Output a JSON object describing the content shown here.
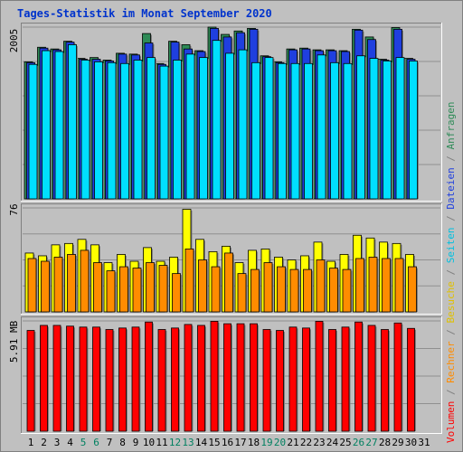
{
  "chart_data": [
    {
      "type": "bar",
      "title": "Tages-Statistik im Monat September 2020",
      "ymax_label": "2005",
      "ylim": [
        0,
        2005
      ],
      "categories": [
        "1",
        "2",
        "3",
        "4",
        "5",
        "6",
        "7",
        "8",
        "9",
        "10",
        "11",
        "12",
        "13",
        "14",
        "15",
        "16",
        "17",
        "18",
        "19",
        "20",
        "21",
        "22",
        "23",
        "24",
        "25",
        "26",
        "27",
        "28",
        "29",
        "30",
        "31"
      ],
      "weekend_categories": [
        "5",
        "6",
        "12",
        "13",
        "19",
        "20",
        "26",
        "27"
      ],
      "series": [
        {
          "name": "Anfragen",
          "color": "#2e8b57",
          "values": [
            1600,
            1770,
            1750,
            1840,
            1640,
            1650,
            1620,
            1700,
            1690,
            1930,
            1580,
            1840,
            1800,
            1730,
            2005,
            1920,
            1960,
            1990,
            1670,
            1600,
            1750,
            1760,
            1740,
            1740,
            1730,
            1980,
            1890,
            1630,
            2000,
            1640,
            null
          ]
        },
        {
          "name": "Dateien",
          "color": "#1f3fdf",
          "values": [
            1590,
            1760,
            1740,
            1830,
            1630,
            1630,
            1610,
            1690,
            1680,
            1820,
            1570,
            1830,
            1750,
            1720,
            1990,
            1890,
            1940,
            1980,
            1660,
            1590,
            1740,
            1750,
            1730,
            1730,
            1720,
            1970,
            1860,
            1620,
            1980,
            1630,
            null
          ]
        },
        {
          "name": "Seiten",
          "color": "#00dfff",
          "values": [
            1570,
            1730,
            1720,
            1800,
            1620,
            1600,
            1590,
            1580,
            1620,
            1650,
            1550,
            1620,
            1690,
            1650,
            1850,
            1700,
            1740,
            1590,
            1650,
            1580,
            1580,
            1580,
            1680,
            1590,
            1580,
            1670,
            1640,
            1610,
            1650,
            1610,
            null
          ]
        }
      ]
    },
    {
      "type": "bar",
      "ymax_label": "76",
      "ylim": [
        0,
        76
      ],
      "series": [
        {
          "name": "Besuche",
          "color": "#ffff00",
          "values": [
            43,
            41,
            49,
            50,
            53,
            49,
            36,
            42,
            37,
            47,
            37,
            40,
            75,
            53,
            44,
            48,
            36,
            45,
            46,
            40,
            38,
            41,
            51,
            37,
            42,
            56,
            54,
            51,
            50,
            42,
            null
          ]
        },
        {
          "name": "Rechner",
          "color": "#ff8c00",
          "values": [
            39,
            37,
            40,
            42,
            45,
            36,
            30,
            33,
            32,
            36,
            34,
            28,
            46,
            38,
            33,
            43,
            28,
            31,
            36,
            33,
            31,
            31,
            38,
            32,
            31,
            39,
            40,
            39,
            39,
            33,
            null
          ]
        }
      ]
    },
    {
      "type": "bar",
      "ymax_label": "5.91 MB",
      "ylim": [
        0,
        5.91
      ],
      "series": [
        {
          "name": "Volumen",
          "color": "#ff0000",
          "values": [
            5.4,
            5.67,
            5.67,
            5.63,
            5.58,
            5.58,
            5.45,
            5.53,
            5.58,
            5.85,
            5.45,
            5.53,
            5.72,
            5.67,
            5.89,
            5.76,
            5.76,
            5.76,
            5.45,
            5.4,
            5.58,
            5.53,
            5.89,
            5.45,
            5.58,
            5.85,
            5.67,
            5.45,
            5.8,
            5.51,
            null
          ]
        }
      ]
    }
  ],
  "legend_right": [
    {
      "text": "Volumen",
      "color": "#ff0000"
    },
    {
      "text": " / ",
      "color": "#808080"
    },
    {
      "text": "Rechner",
      "color": "#ff8c00"
    },
    {
      "text": " / ",
      "color": "#808080"
    },
    {
      "text": "Besuche",
      "color": "#e0c000"
    },
    {
      "text": " / ",
      "color": "#808080"
    },
    {
      "text": "Seiten",
      "color": "#00c0e0"
    },
    {
      "text": " / ",
      "color": "#808080"
    },
    {
      "text": "Dateien",
      "color": "#1f3fdf"
    },
    {
      "text": " / ",
      "color": "#808080"
    },
    {
      "text": "Anfragen",
      "color": "#2e8b57"
    }
  ]
}
